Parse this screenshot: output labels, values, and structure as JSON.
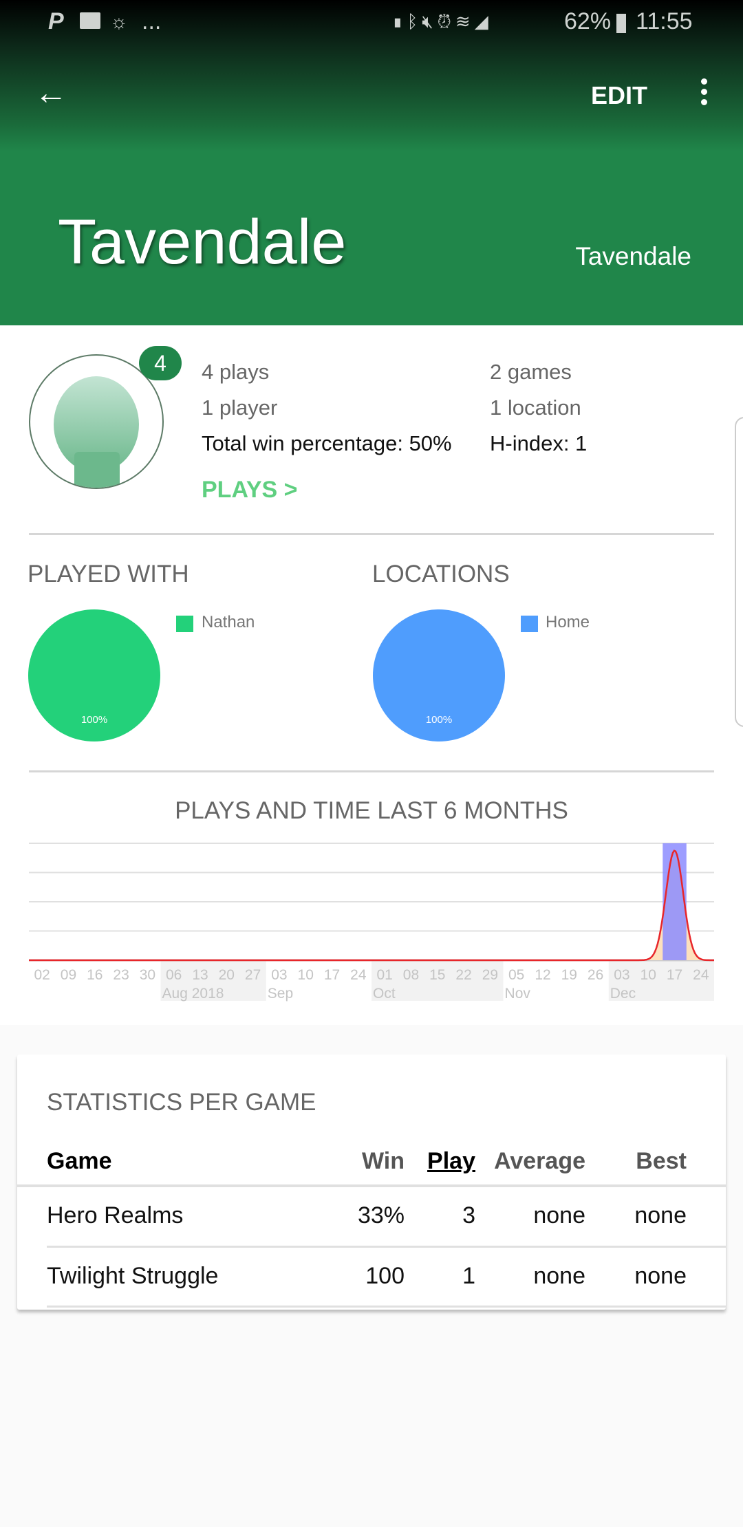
{
  "status_bar": {
    "left_icons": [
      "paypal-icon",
      "message-icon",
      "weather-icon"
    ],
    "overflow": "...",
    "right_icons": [
      "battery-saver-icon",
      "bluetooth-icon",
      "mute-vibrate-icon",
      "alarm-icon",
      "wifi-icon",
      "signal-icon"
    ],
    "battery": "62%",
    "time": "11:55"
  },
  "toolbar": {
    "edit_label": "EDIT"
  },
  "header": {
    "title": "Tavendale",
    "subtitle": "Tavendale",
    "color": "#20864a"
  },
  "summary": {
    "badge": "4",
    "plays": "4 plays",
    "games": "2 games",
    "players": "1 player",
    "locations": "1 location",
    "win_pct": "Total win percentage: 50%",
    "h_index": "H-index: 1",
    "plays_link": "PLAYS >"
  },
  "played_with": {
    "title": "PLAYED WITH",
    "legend": "Nathan",
    "slice_label": "100%",
    "color": "#23d17a"
  },
  "locations": {
    "title": "LOCATIONS",
    "legend": "Home",
    "slice_label": "100%",
    "color": "#4f9dfd"
  },
  "chart_data": {
    "type": "bar",
    "title": "PLAYS AND TIME LAST 6 MONTHS",
    "x": [
      "02",
      "09",
      "16",
      "23",
      "30",
      "06",
      "13",
      "20",
      "27",
      "03",
      "10",
      "17",
      "24",
      "01",
      "08",
      "15",
      "22",
      "29",
      "05",
      "12",
      "19",
      "26",
      "03",
      "10",
      "17",
      "24"
    ],
    "x_ticks": [
      "02",
      "09",
      "16",
      "23",
      "30",
      "06",
      "13",
      "20",
      "27",
      "03",
      "10",
      "17",
      "24",
      "01",
      "08",
      "15",
      "22",
      "29",
      "05",
      "12",
      "19",
      "26",
      "03",
      "10",
      "17",
      "24"
    ],
    "months": [
      {
        "label": "",
        "start": 0,
        "end": 5
      },
      {
        "label": "Aug 2018",
        "start": 5,
        "end": 9
      },
      {
        "label": "Sep",
        "start": 9,
        "end": 13
      },
      {
        "label": "Oct",
        "start": 13,
        "end": 18
      },
      {
        "label": "Nov",
        "start": 18,
        "end": 22
      },
      {
        "label": "Dec",
        "start": 22,
        "end": 26
      }
    ],
    "series": [
      {
        "type": "bar",
        "color": "#8c8cff",
        "values": [
          0,
          0,
          0,
          0,
          0,
          0,
          0,
          0,
          0,
          0,
          0,
          0,
          0,
          0,
          0,
          0,
          0,
          0,
          0,
          0,
          0,
          0,
          0,
          0,
          4,
          0
        ]
      },
      {
        "type": "area",
        "color": "#e8262a",
        "fill": "#fde1bd",
        "values": [
          0,
          0,
          0,
          0,
          0,
          0,
          0,
          0,
          0,
          0,
          0,
          0,
          0,
          0,
          0,
          0,
          0,
          0,
          0,
          0,
          0,
          0,
          0,
          0,
          3.75,
          0
        ]
      }
    ],
    "ylim": [
      0,
      4
    ],
    "grid": true
  },
  "stats": {
    "title": "STATISTICS PER GAME",
    "columns": [
      "Game",
      "Win",
      "Play",
      "Average",
      "Best"
    ],
    "rows": [
      [
        "Hero Realms",
        "33%",
        "3",
        "none",
        "none"
      ],
      [
        "Twilight Struggle",
        "100",
        "1",
        "none",
        "none"
      ]
    ]
  }
}
